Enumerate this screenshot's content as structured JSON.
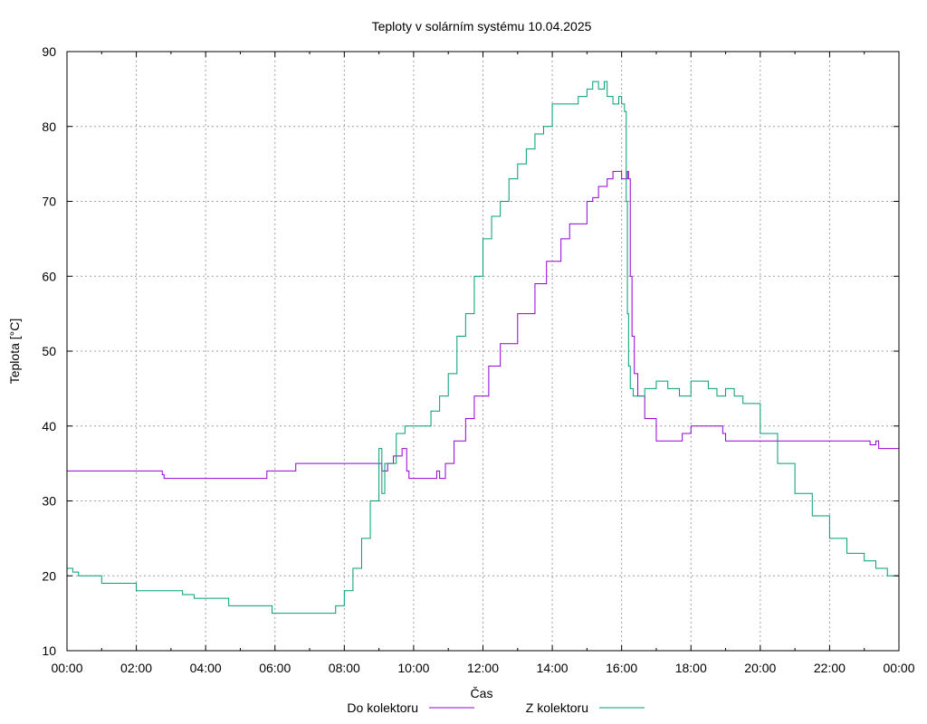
{
  "chart_data": {
    "type": "line",
    "title": "Teploty v solárním systému 10.04.2025",
    "xlabel": "Čas",
    "ylabel": "Teplota [°C]",
    "xlim": [
      "00:00",
      "24:00"
    ],
    "ylim": [
      10,
      90
    ],
    "x_ticks": [
      "00:00",
      "02:00",
      "04:00",
      "06:00",
      "08:00",
      "10:00",
      "12:00",
      "14:00",
      "16:00",
      "18:00",
      "20:00",
      "22:00",
      "00:00"
    ],
    "y_ticks": [
      10,
      20,
      30,
      40,
      50,
      60,
      70,
      80,
      90
    ],
    "grid": true,
    "legend_position": "bottom",
    "series": [
      {
        "name": "Do kolektoru",
        "color": "#9400d3",
        "x": [
          "00:00",
          "02:40",
          "02:45",
          "02:48",
          "04:00",
          "05:45",
          "05:46",
          "06:35",
          "06:36",
          "09:00",
          "09:05",
          "09:15",
          "09:25",
          "09:40",
          "09:48",
          "09:52",
          "10:30",
          "10:40",
          "10:45",
          "10:55",
          "11:10",
          "11:30",
          "11:45",
          "12:10",
          "12:30",
          "13:00",
          "13:30",
          "13:50",
          "14:15",
          "14:30",
          "15:00",
          "15:10",
          "15:20",
          "15:35",
          "15:45",
          "16:00",
          "16:10",
          "16:12",
          "16:15",
          "16:18",
          "16:22",
          "16:28",
          "16:40",
          "17:00",
          "17:30",
          "17:45",
          "18:00",
          "18:30",
          "18:55",
          "19:00",
          "20:00",
          "21:00",
          "22:00",
          "23:00",
          "23:10",
          "23:20",
          "23:25",
          "24:00"
        ],
        "y": [
          34,
          34,
          33.5,
          33,
          33,
          33,
          34,
          34,
          35,
          35,
          34,
          35,
          36,
          37,
          34,
          33,
          33,
          34,
          33,
          35,
          38,
          41,
          44,
          48,
          51,
          55,
          59,
          62,
          65,
          67,
          70,
          70.5,
          72,
          73,
          74,
          73,
          74,
          73,
          60,
          52,
          47,
          44,
          41,
          38,
          38,
          39,
          40,
          40,
          39,
          38,
          38,
          38,
          38,
          38,
          37.5,
          38,
          37,
          37
        ]
      },
      {
        "name": "Z kolektoru",
        "color": "#009e73",
        "x": [
          "00:00",
          "00:10",
          "00:20",
          "00:40",
          "01:00",
          "01:20",
          "02:00",
          "03:00",
          "03:20",
          "03:40",
          "04:00",
          "04:40",
          "05:00",
          "05:45",
          "05:55",
          "06:30",
          "07:00",
          "07:40",
          "07:45",
          "08:00",
          "08:15",
          "08:30",
          "08:45",
          "09:00",
          "09:05",
          "09:10",
          "09:30",
          "09:45",
          "10:00",
          "10:30",
          "10:45",
          "11:00",
          "11:15",
          "11:30",
          "11:45",
          "12:00",
          "12:15",
          "12:30",
          "12:45",
          "13:00",
          "13:15",
          "13:30",
          "13:45",
          "14:00",
          "14:30",
          "14:45",
          "15:00",
          "15:10",
          "15:20",
          "15:30",
          "15:35",
          "15:45",
          "15:55",
          "16:00",
          "16:05",
          "16:08",
          "16:10",
          "16:12",
          "16:15",
          "16:20",
          "16:30",
          "16:40",
          "17:00",
          "17:20",
          "17:40",
          "18:00",
          "18:15",
          "18:30",
          "18:45",
          "19:00",
          "19:15",
          "19:30",
          "20:00",
          "20:30",
          "21:00",
          "21:30",
          "22:00",
          "22:30",
          "23:00",
          "23:20",
          "23:40",
          "24:00"
        ],
        "y": [
          21,
          20.5,
          20,
          20,
          19,
          19,
          18,
          18,
          17.5,
          17,
          17,
          16,
          16,
          16,
          15,
          15,
          15,
          15,
          16,
          18,
          21,
          25,
          30,
          37,
          31,
          35,
          39,
          40,
          40,
          42,
          44,
          47,
          52,
          55,
          60,
          65,
          68,
          70,
          73,
          75,
          77,
          79,
          80,
          83,
          83,
          84,
          85,
          86,
          85,
          86,
          84,
          83,
          84,
          83,
          82,
          70,
          55,
          48,
          45,
          44,
          44,
          45,
          46,
          45,
          44,
          46,
          46,
          45,
          44,
          45,
          44,
          43,
          39,
          35,
          31,
          28,
          25,
          23,
          22,
          21,
          20,
          19
        ]
      }
    ]
  }
}
